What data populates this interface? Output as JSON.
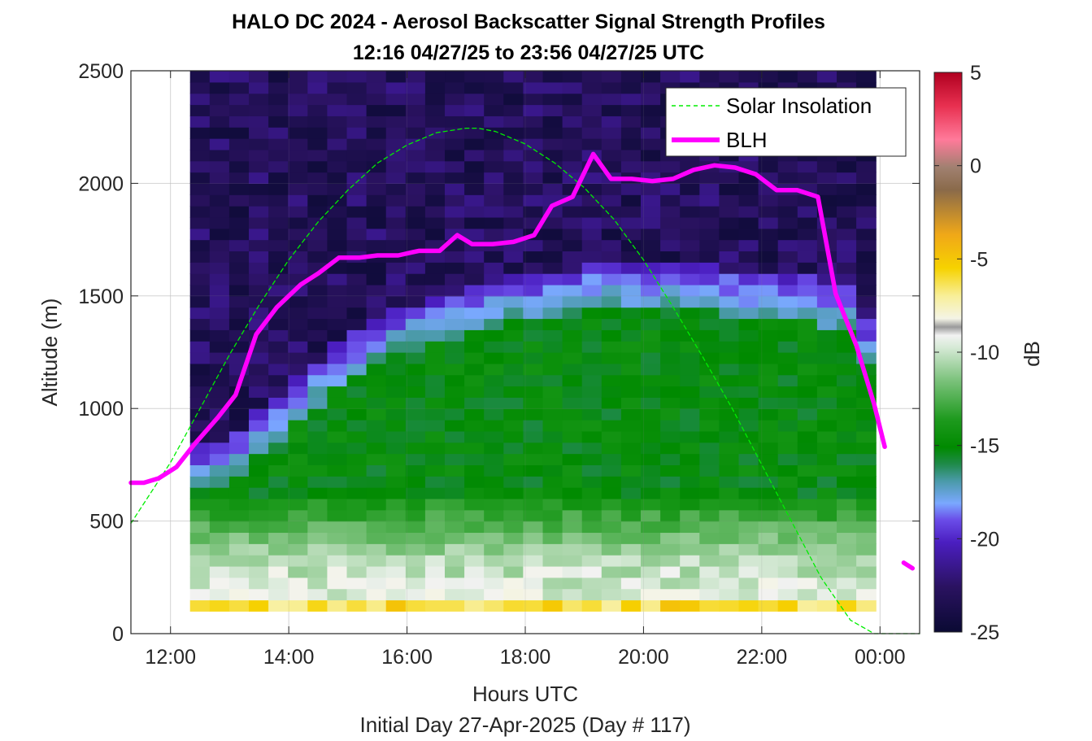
{
  "chart_data": {
    "type": "heatmap",
    "title": "HALO DC 2024 - Aerosol Backscatter Signal Strength Profiles",
    "subtitle": "12:16 04/27/25 to 23:56 04/27/25  UTC",
    "xlabel": "Hours UTC",
    "xlabel2": "Initial Day 27-Apr-2025 (Day # 117)",
    "ylabel": "Altitude (m)",
    "x_unit": "hours",
    "xlim": [
      11.33,
      24.67
    ],
    "ylim": [
      0,
      2500
    ],
    "x_ticks": [
      12,
      14,
      16,
      18,
      20,
      22,
      24
    ],
    "x_tick_labels": [
      "12:00",
      "14:00",
      "16:00",
      "18:00",
      "20:00",
      "22:00",
      "00:00"
    ],
    "y_ticks": [
      0,
      500,
      1000,
      1500,
      2000,
      2500
    ],
    "y_tick_labels": [
      "0",
      "500",
      "1000",
      "1500",
      "2000",
      "2500"
    ],
    "grid": true,
    "legend_placement": "top-right",
    "colorbar": {
      "label": "dB",
      "range": [
        -25,
        5
      ],
      "ticks": [
        5,
        0,
        -5,
        -10,
        -15,
        -20,
        -25
      ],
      "tick_labels": [
        "5",
        "0",
        "-5",
        "-10",
        "-15",
        "-20",
        "-25"
      ]
    },
    "heatmap": {
      "x_start": 12.33,
      "x_end": 23.93,
      "y_start": 100,
      "y_end": 2500,
      "time_bins": 35,
      "altitude_bins": 48,
      "value_unit": "dB",
      "description_levels": {
        "surface_dB": -6,
        "near_surface_dB": -9,
        "mixed_layer_dB": -15,
        "entrainment_dB": -20,
        "free_troposphere_dB": -23
      },
      "aerosol_top_m": [
        750,
        780,
        820,
        900,
        980,
        1060,
        1130,
        1200,
        1260,
        1320,
        1360,
        1390,
        1420,
        1440,
        1460,
        1480,
        1500,
        1510,
        1520,
        1540,
        1560,
        1560,
        1550,
        1560,
        1570,
        1560,
        1550,
        1540,
        1530,
        1520,
        1510,
        1500,
        1480,
        1460,
        1300
      ]
    },
    "series": [
      {
        "name": "Solar Insolation",
        "color": "#00ee00",
        "style": "dashed",
        "x": [
          11.33,
          12.0,
          12.5,
          13.0,
          13.5,
          14.0,
          14.5,
          15.0,
          15.5,
          16.0,
          16.5,
          17.0,
          17.2,
          17.5,
          18.0,
          18.5,
          19.0,
          19.5,
          20.0,
          20.5,
          21.0,
          21.5,
          22.0,
          22.5,
          23.0,
          23.5,
          23.9,
          24.67
        ],
        "y": [
          490,
          760,
          1000,
          1240,
          1460,
          1660,
          1830,
          1970,
          2090,
          2170,
          2225,
          2245,
          2245,
          2230,
          2175,
          2090,
          1980,
          1840,
          1660,
          1450,
          1230,
          1000,
          750,
          500,
          250,
          60,
          0,
          0
        ]
      },
      {
        "name": "BLH",
        "color": "#ff00ff",
        "style": "solid",
        "x": [
          11.33,
          11.55,
          11.8,
          12.1,
          12.4,
          12.8,
          13.1,
          13.45,
          13.8,
          14.2,
          14.5,
          14.85,
          15.2,
          15.5,
          15.85,
          16.2,
          16.55,
          16.85,
          17.1,
          17.45,
          17.8,
          18.15,
          18.45,
          18.8,
          19.15,
          19.45,
          19.8,
          20.15,
          20.5,
          20.85,
          21.2,
          21.55,
          21.9,
          22.25,
          22.6,
          22.95,
          23.25,
          23.6,
          23.9,
          24.08
        ],
        "y": [
          670,
          670,
          690,
          740,
          840,
          960,
          1060,
          1330,
          1450,
          1550,
          1600,
          1670,
          1670,
          1680,
          1680,
          1700,
          1700,
          1770,
          1730,
          1730,
          1740,
          1770,
          1900,
          1940,
          2130,
          2020,
          2020,
          2010,
          2020,
          2060,
          2080,
          2070,
          2040,
          1970,
          1970,
          1940,
          1510,
          1280,
          1020,
          830
        ],
        "extra_segment": {
          "x": [
            24.4,
            24.55
          ],
          "y": [
            315,
            290
          ]
        }
      }
    ]
  }
}
